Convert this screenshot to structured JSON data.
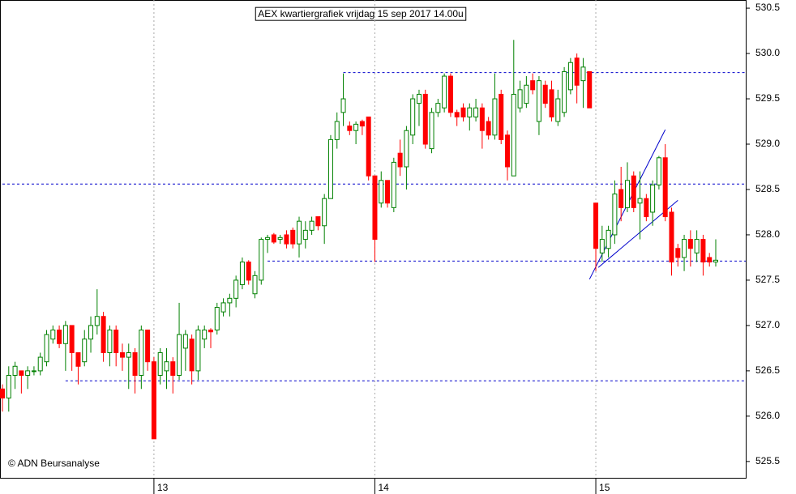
{
  "chart_data": {
    "type": "candlestick",
    "title": "AEX kwartiergrafiek vrijdag 15 sep 2017 14.00u",
    "annotation": "© ADN Beursanalyse",
    "up_color": "#008000",
    "down_color": "#ff0000",
    "line_color": "#0000cc",
    "ylim": [
      525.32,
      530.59
    ],
    "yticks": [
      525.5,
      {
        "value": 526,
        "label": "526.0"
      },
      526.5,
      {
        "value": 527,
        "label": "527.0"
      },
      527.5,
      {
        "value": 528,
        "label": "528.0"
      },
      528.5,
      {
        "value": 529,
        "label": "529.0"
      },
      529.5,
      {
        "value": 530,
        "label": "530.0"
      },
      530.5
    ],
    "xticks": [
      {
        "value": 24,
        "label": "13"
      },
      {
        "value": 59,
        "label": "14"
      },
      {
        "value": 94,
        "label": "15"
      }
    ],
    "grid": true,
    "hlines": [
      {
        "value": 529.79,
        "from": 54
      },
      {
        "value": 528.56,
        "from": 0
      },
      {
        "value": 527.71,
        "from": 42
      },
      {
        "value": 526.39,
        "from": 10
      }
    ],
    "channels": [
      [
        [
          93,
          527.51
        ],
        [
          105,
          529.16
        ]
      ],
      [
        [
          94.4,
          527.64
        ],
        [
          107,
          528.38
        ]
      ]
    ],
    "open": [
      526.3,
      526.2,
      526.45,
      526.5,
      526.45,
      526.5,
      526.5,
      526.6,
      526.85,
      526.95,
      526.8,
      527.0,
      526.7,
      526.6,
      526.85,
      527.0,
      527.1,
      526.7,
      526.95,
      526.7,
      526.65,
      526.7,
      526.45,
      526.95,
      526.6,
      526.45,
      526.5,
      526.6,
      526.45,
      526.75,
      526.85,
      526.5,
      526.85,
      526.95,
      526.95,
      527.15,
      527.25,
      527.3,
      527.45,
      527.7,
      527.35,
      527.5,
      527.95,
      528.0,
      527.95,
      528.0,
      528.05,
      527.9,
      527.95,
      528.05,
      528.2,
      528.1,
      528.4,
      529.05,
      529.35,
      529.2,
      529.15,
      529.25,
      529.3,
      528.65,
      528.35,
      528.6,
      528.3,
      528.9,
      528.75,
      529.1,
      529.45,
      529.55,
      528.95,
      529.35,
      529.4,
      529.75,
      529.35,
      529.4,
      529.3,
      529.3,
      529.4,
      529.25,
      529.1,
      529.55,
      529.1,
      528.65,
      529.4,
      529.45,
      529.7,
      529.25,
      529.65,
      529.6,
      529.25,
      529.35,
      529.6,
      529.95,
      529.7,
      529.8,
      528.35,
      527.8,
      527.85,
      528.0,
      528.5,
      528.3,
      528.65,
      528.35,
      528.4,
      528.25,
      528.55,
      528.85,
      528.25,
      527.85,
      527.75,
      527.95,
      527.8,
      527.95,
      527.75,
      527.7
    ],
    "high": [
      526.35,
      526.55,
      526.6,
      526.5,
      526.55,
      526.55,
      526.7,
      526.95,
      527.0,
      527.0,
      527.05,
      527.0,
      526.7,
      526.95,
      527.1,
      527.4,
      527.15,
      527.0,
      527.0,
      526.8,
      526.8,
      526.75,
      527.0,
      526.95,
      526.65,
      526.75,
      526.75,
      526.65,
      527.25,
      526.95,
      526.9,
      527.0,
      527.0,
      526.97,
      527.25,
      527.3,
      527.35,
      527.55,
      527.75,
      527.72,
      527.6,
      527.97,
      528.0,
      528.02,
      528.0,
      528.05,
      528.08,
      528.2,
      528.15,
      528.2,
      528.2,
      528.45,
      529.1,
      529.35,
      529.78,
      529.25,
      529.25,
      529.27,
      529.3,
      528.65,
      528.7,
      528.6,
      528.85,
      529.05,
      529.2,
      529.55,
      529.6,
      529.6,
      529.4,
      529.5,
      529.78,
      529.78,
      529.38,
      529.45,
      529.45,
      529.5,
      529.45,
      529.3,
      529.78,
      529.6,
      529.15,
      530.15,
      529.7,
      529.75,
      529.78,
      529.75,
      529.7,
      529.7,
      529.6,
      529.85,
      529.95,
      530.0,
      529.95,
      529.8,
      528.35,
      528.1,
      528.1,
      528.6,
      528.75,
      528.8,
      528.7,
      528.7,
      528.45,
      528.6,
      528.87,
      529.0,
      528.3,
      527.9,
      528.0,
      528.05,
      528.05,
      528.0,
      527.8,
      527.95
    ],
    "low": [
      526.05,
      526.05,
      526.3,
      526.25,
      526.3,
      526.45,
      526.45,
      526.55,
      526.8,
      526.75,
      526.5,
      526.5,
      526.35,
      526.55,
      526.7,
      526.9,
      526.6,
      526.55,
      526.55,
      526.5,
      526.3,
      526.25,
      526.3,
      526.5,
      525.75,
      526.35,
      526.3,
      526.25,
      526.4,
      526.5,
      526.35,
      526.4,
      526.75,
      526.75,
      526.9,
      527.1,
      527.1,
      527.2,
      527.4,
      527.45,
      527.3,
      527.45,
      527.8,
      527.9,
      527.9,
      527.85,
      527.85,
      527.75,
      527.85,
      528.0,
      528.05,
      527.9,
      528.4,
      528.95,
      529.2,
      529.1,
      529.0,
      529.1,
      528.6,
      527.7,
      528.3,
      528.3,
      528.25,
      528.65,
      528.5,
      529.0,
      529.2,
      528.95,
      528.9,
      529.3,
      529.35,
      529.3,
      529.2,
      529.25,
      529.15,
      529.25,
      528.95,
      529.05,
      529.05,
      529.0,
      528.6,
      528.65,
      529.35,
      529.4,
      529.55,
      529.1,
      529.4,
      529.25,
      529.2,
      529.3,
      529.55,
      529.45,
      529.4,
      529.4,
      527.6,
      527.7,
      527.75,
      527.9,
      528.15,
      528.25,
      528.25,
      527.95,
      528.15,
      528.1,
      528.5,
      528.15,
      527.55,
      527.65,
      527.6,
      527.65,
      527.7,
      527.55,
      527.65,
      527.65
    ],
    "close": [
      526.2,
      526.45,
      526.55,
      526.45,
      526.5,
      526.5,
      526.65,
      526.9,
      526.95,
      526.8,
      527.0,
      526.7,
      526.55,
      526.85,
      527.0,
      527.1,
      526.7,
      526.95,
      526.7,
      526.65,
      526.7,
      526.45,
      526.95,
      526.6,
      525.75,
      526.7,
      526.6,
      526.45,
      526.9,
      526.9,
      526.5,
      526.95,
      526.95,
      526.93,
      527.2,
      527.25,
      527.3,
      527.5,
      527.7,
      527.5,
      527.55,
      527.95,
      527.97,
      527.92,
      527.97,
      527.9,
      527.9,
      528.15,
      528.05,
      528.15,
      528.1,
      528.4,
      529.05,
      529.25,
      529.5,
      529.15,
      529.22,
      529.2,
      528.65,
      527.95,
      528.6,
      528.35,
      528.8,
      528.75,
      529.15,
      529.5,
      529.55,
      529.0,
      529.35,
      529.45,
      529.75,
      529.35,
      529.3,
      529.3,
      529.4,
      529.4,
      529.15,
      529.1,
      529.5,
      529.05,
      528.75,
      529.55,
      529.6,
      529.65,
      529.6,
      529.7,
      529.45,
      529.3,
      529.5,
      529.8,
      529.9,
      529.65,
      529.85,
      529.4,
      527.85,
      527.95,
      528.05,
      528.45,
      528.3,
      528.6,
      528.3,
      528.4,
      528.2,
      528.55,
      528.85,
      528.2,
      527.7,
      527.75,
      527.95,
      527.85,
      527.95,
      527.7,
      527.7,
      527.72
    ]
  }
}
